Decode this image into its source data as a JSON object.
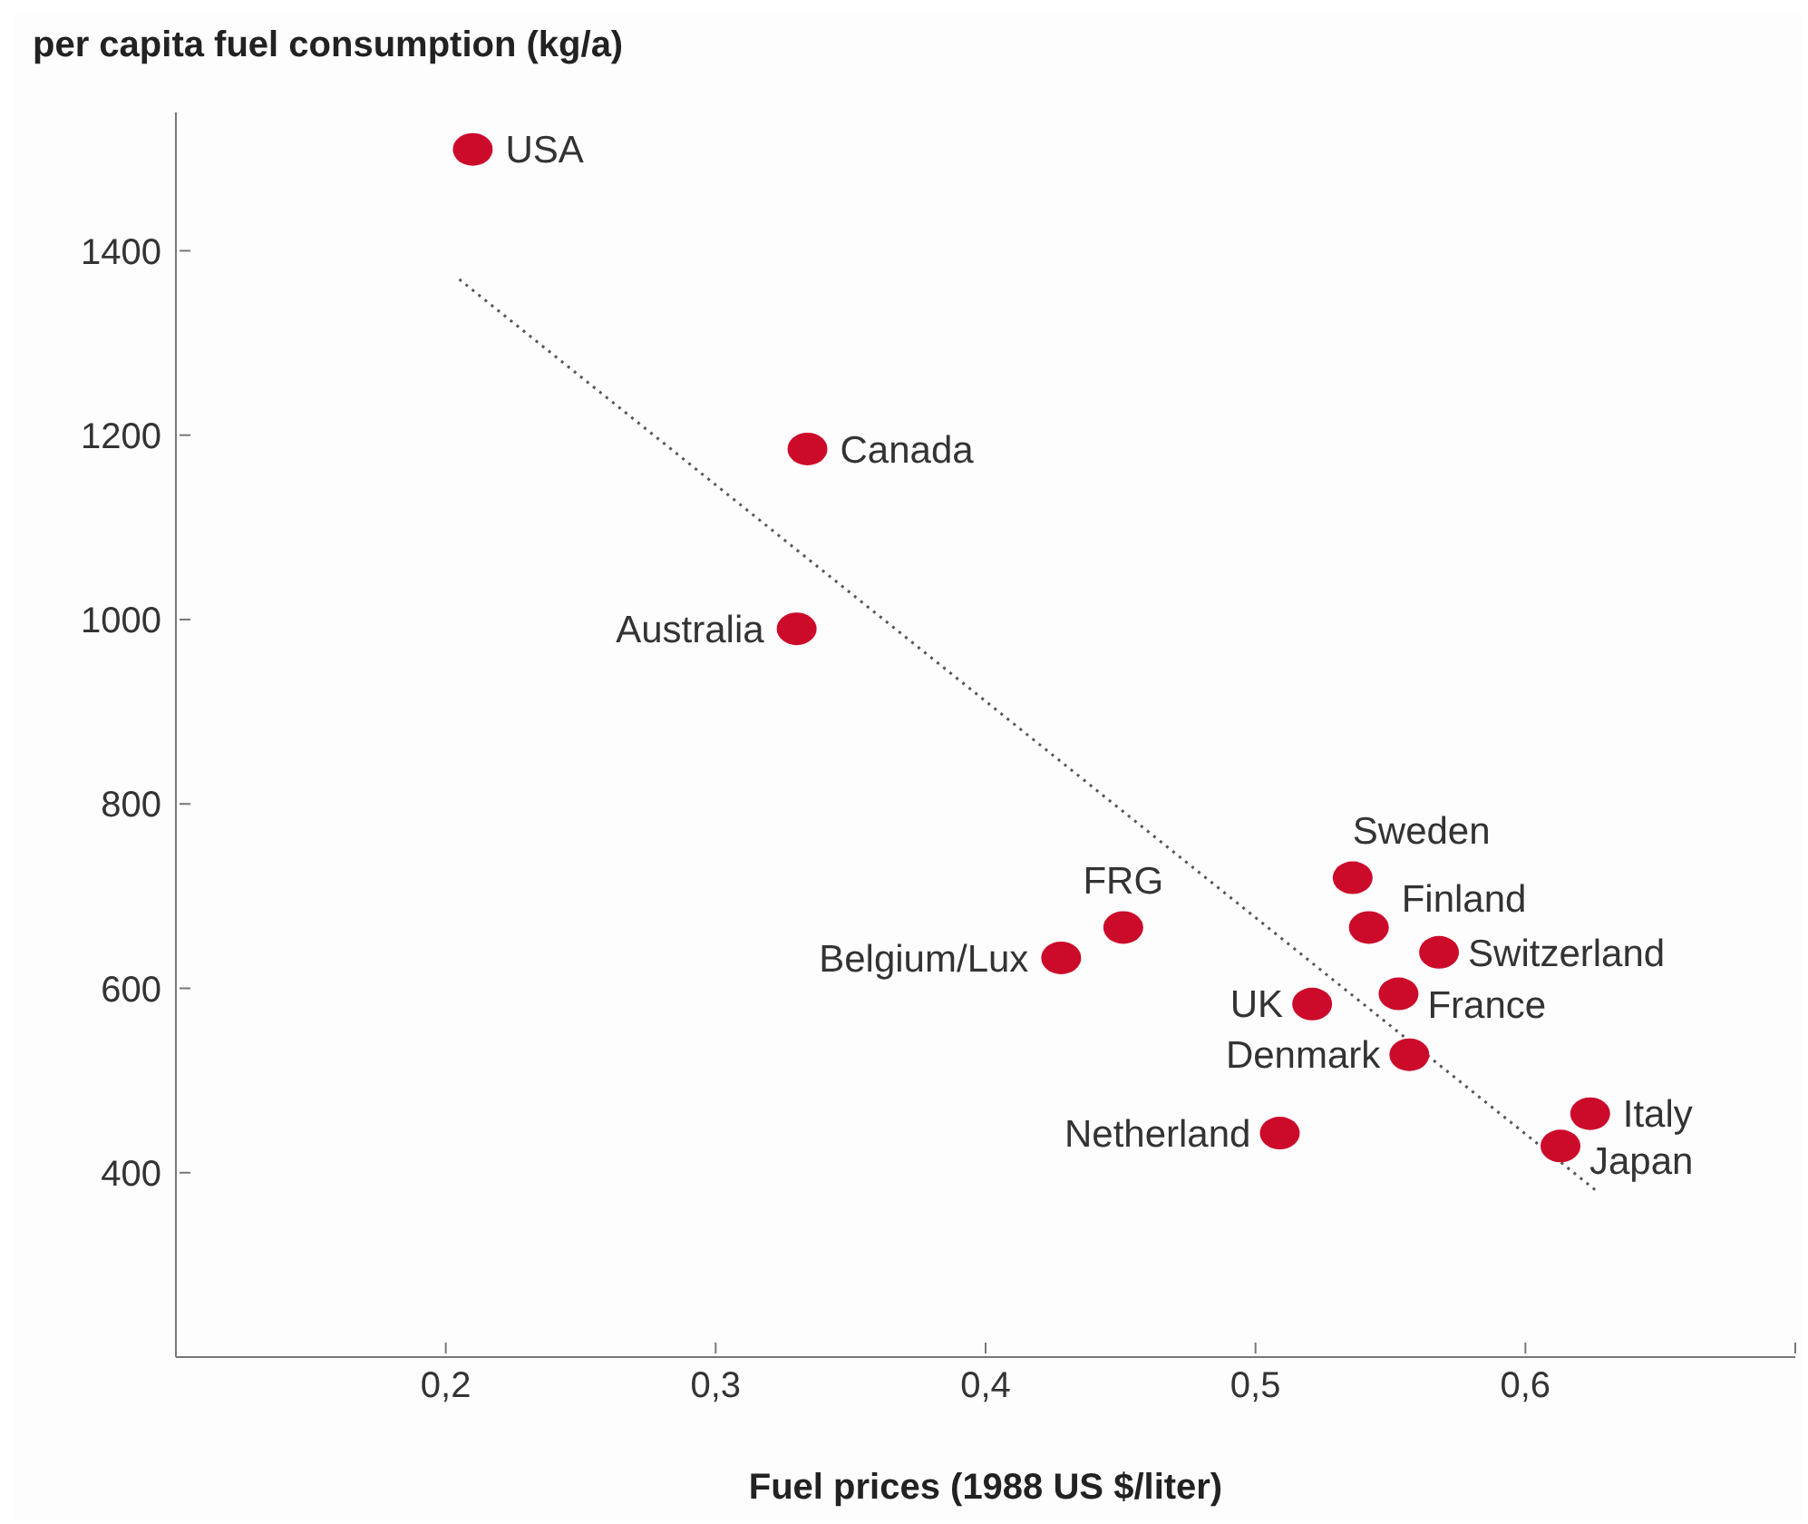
{
  "chart_data": {
    "type": "scatter",
    "ylabel": "per capita fuel consumption (kg/a)",
    "xlabel": "Fuel prices (1988 US $/liter)",
    "xlim": [
      0.1,
      0.7
    ],
    "xticks": [
      {
        "value": 0.2,
        "label": "0,2"
      },
      {
        "value": 0.3,
        "label": "0,3"
      },
      {
        "value": 0.4,
        "label": "0,4"
      },
      {
        "value": 0.5,
        "label": "0,5"
      },
      {
        "value": 0.6,
        "label": "0,6"
      },
      {
        "value": 0.7,
        "label": null
      }
    ],
    "ylim": [
      200,
      1550
    ],
    "yticks": [
      400,
      600,
      800,
      1000,
      1200,
      1400
    ],
    "grid": false,
    "marker": "circle",
    "series": [
      {
        "color": "#cc0a2a",
        "x": [
          0.21,
          0.334,
          0.33,
          0.451,
          0.428,
          0.536,
          0.542,
          0.568,
          0.521,
          0.553,
          0.557,
          0.509,
          0.624,
          0.613
        ],
        "values": [
          1510,
          1185,
          990,
          666,
          633,
          720,
          666,
          639,
          583,
          594,
          528,
          443,
          464,
          429
        ]
      },
      {
        "type": "line",
        "color": "#555555",
        "line_style": "dotted",
        "marker": "none",
        "x": [
          0.205,
          0.626
        ],
        "values": [
          1369,
          381
        ]
      }
    ],
    "annotations": [
      {
        "text": "USA",
        "x": 0.21,
        "y": 1510
      },
      {
        "text": "Canada",
        "x": 0.334,
        "y": 1185
      },
      {
        "text": "Australia",
        "x": 0.33,
        "y": 990
      },
      {
        "text": "FRG",
        "x": 0.451,
        "y": 666
      },
      {
        "text": "Belgium/Lux",
        "x": 0.428,
        "y": 633
      },
      {
        "text": "Sweden",
        "x": 0.536,
        "y": 720
      },
      {
        "text": "Finland",
        "x": 0.542,
        "y": 666
      },
      {
        "text": "Switzerland",
        "x": 0.568,
        "y": 639
      },
      {
        "text": "UK",
        "x": 0.521,
        "y": 583
      },
      {
        "text": "France",
        "x": 0.553,
        "y": 594
      },
      {
        "text": "Denmark",
        "x": 0.557,
        "y": 528
      },
      {
        "text": "Netherland",
        "x": 0.509,
        "y": 443
      },
      {
        "text": "Italy",
        "x": 0.624,
        "y": 464
      },
      {
        "text": "Japan",
        "x": 0.613,
        "y": 429
      }
    ]
  }
}
